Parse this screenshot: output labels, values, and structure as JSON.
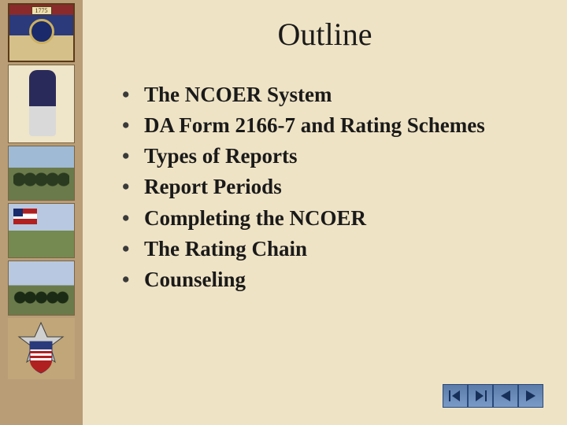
{
  "background_color": "#efe3c5",
  "sidebar_color": "#b89d76",
  "title": "Outline",
  "title_fontsize": 40,
  "bullet_fontsize": 27,
  "bullet_color": "#1a1a1a",
  "bullets": [
    "The NCOER System",
    "DA Form 2166-7 and Rating Schemes",
    "Types of Reports",
    "Report Periods",
    "Completing the NCOER",
    "The Rating Chain",
    "Counseling"
  ],
  "crest_year": "1775",
  "nav": {
    "first_color": "#2a4a7a",
    "last_color": "#2a4a7a",
    "prev_color": "#2a4a7a",
    "next_color": "#2a4a7a",
    "btn_bg": "#6a8ab8"
  }
}
